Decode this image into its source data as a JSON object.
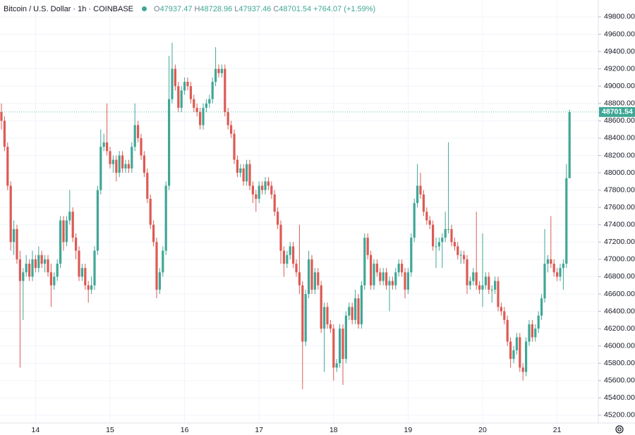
{
  "chart_data": {
    "type": "candlestick",
    "title": "Bitcoin / U.S. Dollar · 1h · COINBASE",
    "legend_letters": [
      "O",
      "H",
      "L",
      "C"
    ],
    "change": "+764.07 (+1.59%)",
    "up_color": "#3fa796",
    "down_color": "#dd5a53",
    "grid": true,
    "ylim": [
      45110,
      49995
    ],
    "yticks": [
      {
        "value": 45200,
        "label": "45200.00"
      },
      {
        "value": 45400,
        "label": "45400.00"
      },
      {
        "value": 45600,
        "label": "45600.00"
      },
      {
        "value": 45800,
        "label": "45800.00"
      },
      {
        "value": 46000,
        "label": "46000.00"
      },
      {
        "value": 46200,
        "label": "46200.00"
      },
      {
        "value": 46400,
        "label": "46400.00"
      },
      {
        "value": 46600,
        "label": "46600.00"
      },
      {
        "value": 46800,
        "label": "46800.00"
      },
      {
        "value": 47000,
        "label": "47000.00"
      },
      {
        "value": 47200,
        "label": "47200.00"
      },
      {
        "value": 47400,
        "label": "47400.00"
      },
      {
        "value": 47600,
        "label": "47600.00"
      },
      {
        "value": 47800,
        "label": "47800.00"
      },
      {
        "value": 48000,
        "label": "48000.00"
      },
      {
        "value": 48200,
        "label": "48200.00"
      },
      {
        "value": 48400,
        "label": "48400.00"
      },
      {
        "value": 48600,
        "label": "48600.00"
      },
      {
        "value": 48800,
        "label": "48800.00"
      },
      {
        "value": 49000,
        "label": "49000.00"
      },
      {
        "value": 49200,
        "label": "49200.00"
      },
      {
        "value": 49400,
        "label": "49400.00"
      },
      {
        "value": 49600,
        "label": "49600.00"
      },
      {
        "value": 49800,
        "label": "49800.00"
      }
    ],
    "x": [
      null,
      null,
      null,
      null,
      null,
      null,
      null,
      null,
      null,
      null,
      null,
      "14",
      null,
      null,
      null,
      null,
      null,
      null,
      null,
      null,
      null,
      null,
      null,
      null,
      null,
      null,
      null,
      null,
      null,
      null,
      null,
      null,
      null,
      null,
      null,
      "15",
      null,
      null,
      null,
      null,
      null,
      null,
      null,
      null,
      null,
      null,
      null,
      null,
      null,
      null,
      null,
      null,
      null,
      null,
      null,
      null,
      null,
      null,
      null,
      "16",
      null,
      null,
      null,
      null,
      null,
      null,
      null,
      null,
      null,
      null,
      null,
      null,
      null,
      null,
      null,
      null,
      null,
      null,
      null,
      null,
      null,
      null,
      null,
      "17",
      null,
      null,
      null,
      null,
      null,
      null,
      null,
      null,
      null,
      null,
      null,
      null,
      null,
      null,
      null,
      null,
      null,
      null,
      null,
      null,
      null,
      null,
      null,
      "18",
      null,
      null,
      null,
      null,
      null,
      null,
      null,
      null,
      null,
      null,
      null,
      null,
      null,
      null,
      null,
      null,
      null,
      null,
      null,
      null,
      null,
      null,
      null,
      "19",
      null,
      null,
      null,
      null,
      null,
      null,
      null,
      null,
      null,
      null,
      null,
      null,
      null,
      null,
      null,
      null,
      null,
      null,
      null,
      null,
      null,
      null,
      null,
      "20",
      null,
      null,
      null,
      null,
      null,
      null,
      null,
      null,
      null,
      null,
      null,
      null,
      null,
      null,
      null,
      null,
      null,
      null,
      null,
      null,
      null,
      null,
      null,
      "21",
      null,
      null,
      null,
      null
    ],
    "candles": [
      [
        48700,
        48800,
        48500,
        48600
      ],
      [
        48600,
        48650,
        48250,
        48300
      ],
      [
        48300,
        48350,
        47800,
        47850
      ],
      [
        47850,
        47900,
        47100,
        47200
      ],
      [
        47200,
        47450,
        47050,
        47350
      ],
      [
        47350,
        47400,
        46950,
        47000
      ],
      [
        47000,
        47100,
        45750,
        46750
      ],
      [
        46750,
        46900,
        46300,
        46850
      ],
      [
        46850,
        47050,
        46800,
        46950
      ],
      [
        46950,
        47000,
        46750,
        46800
      ],
      [
        46800,
        47100,
        46750,
        47000
      ],
      [
        47000,
        47050,
        46850,
        46900
      ],
      [
        46900,
        47150,
        46850,
        47050
      ],
      [
        47050,
        47100,
        46900,
        46950
      ],
      [
        46950,
        47050,
        46850,
        47000
      ],
      [
        47000,
        47050,
        46800,
        46850
      ],
      [
        46850,
        46950,
        46450,
        46700
      ],
      [
        46700,
        46850,
        46650,
        46800
      ],
      [
        46800,
        47000,
        46750,
        46950
      ],
      [
        46950,
        47500,
        46900,
        47450
      ],
      [
        47450,
        47500,
        47100,
        47200
      ],
      [
        47200,
        47500,
        47150,
        47450
      ],
      [
        47450,
        47800,
        47400,
        47550
      ],
      [
        47550,
        47600,
        47200,
        47250
      ],
      [
        47250,
        47300,
        47000,
        47100
      ],
      [
        47100,
        47150,
        46750,
        46800
      ],
      [
        46800,
        46950,
        46750,
        46900
      ],
      [
        46900,
        46950,
        46650,
        46700
      ],
      [
        46700,
        46750,
        46500,
        46650
      ],
      [
        46650,
        46800,
        46600,
        46700
      ],
      [
        46700,
        47150,
        46650,
        47100
      ],
      [
        47100,
        47850,
        47050,
        47800
      ],
      [
        47800,
        48500,
        47750,
        48300
      ],
      [
        48300,
        48450,
        48250,
        48350
      ],
      [
        48350,
        48800,
        48200,
        48250
      ],
      [
        48250,
        48300,
        48050,
        48100
      ],
      [
        48100,
        48200,
        48000,
        48150
      ],
      [
        48150,
        48200,
        47900,
        48000
      ],
      [
        48000,
        48250,
        47950,
        48200
      ],
      [
        48200,
        48250,
        48000,
        48050
      ],
      [
        48050,
        48150,
        48000,
        48100
      ],
      [
        48100,
        48150,
        48000,
        48050
      ],
      [
        48050,
        48350,
        48000,
        48300
      ],
      [
        48300,
        48800,
        48250,
        48550
      ],
      [
        48550,
        48600,
        48350,
        48400
      ],
      [
        48400,
        48450,
        48150,
        48200
      ],
      [
        48200,
        48250,
        47950,
        48000
      ],
      [
        48000,
        48050,
        47650,
        47700
      ],
      [
        47700,
        47750,
        47350,
        47400
      ],
      [
        47400,
        47450,
        47150,
        47200
      ],
      [
        47200,
        47250,
        46550,
        46650
      ],
      [
        46650,
        46900,
        46600,
        46850
      ],
      [
        46850,
        47150,
        46800,
        47100
      ],
      [
        47100,
        47900,
        47050,
        47850
      ],
      [
        47850,
        49350,
        47800,
        48850
      ],
      [
        48850,
        49500,
        48800,
        49200
      ],
      [
        49200,
        49250,
        48950,
        49000
      ],
      [
        49000,
        49050,
        48700,
        48750
      ],
      [
        48750,
        49000,
        48700,
        48950
      ],
      [
        48950,
        49100,
        48900,
        49050
      ],
      [
        49050,
        49100,
        48950,
        49000
      ],
      [
        49000,
        49050,
        48800,
        48850
      ],
      [
        48850,
        48900,
        48700,
        48750
      ],
      [
        48750,
        48800,
        48650,
        48700
      ],
      [
        48700,
        48750,
        48500,
        48550
      ],
      [
        48550,
        48800,
        48500,
        48750
      ],
      [
        48750,
        48850,
        48700,
        48800
      ],
      [
        48800,
        48900,
        48750,
        48850
      ],
      [
        48850,
        49100,
        48800,
        49050
      ],
      [
        49050,
        49450,
        49000,
        49200
      ],
      [
        49200,
        49250,
        49100,
        49150
      ],
      [
        49150,
        49250,
        49100,
        49200
      ],
      [
        49200,
        49250,
        48650,
        48700
      ],
      [
        48700,
        48750,
        48500,
        48550
      ],
      [
        48550,
        48600,
        48400,
        48450
      ],
      [
        48450,
        48500,
        48100,
        48150
      ],
      [
        48150,
        48200,
        47950,
        48000
      ],
      [
        48000,
        48100,
        47950,
        48050
      ],
      [
        48050,
        48100,
        47850,
        47900
      ],
      [
        47900,
        48150,
        47850,
        48100
      ],
      [
        48100,
        48150,
        47800,
        47850
      ],
      [
        47850,
        47900,
        47650,
        47750
      ],
      [
        47750,
        47800,
        47550,
        47700
      ],
      [
        47700,
        47900,
        47650,
        47850
      ],
      [
        47850,
        47900,
        47750,
        47800
      ],
      [
        47800,
        47950,
        47750,
        47900
      ],
      [
        47900,
        47950,
        47800,
        47850
      ],
      [
        47850,
        47900,
        47700,
        47750
      ],
      [
        47750,
        47800,
        47500,
        47550
      ],
      [
        47550,
        47600,
        47350,
        47400
      ],
      [
        47400,
        47450,
        46950,
        47100
      ],
      [
        47100,
        47150,
        46800,
        46950
      ],
      [
        46950,
        47100,
        46900,
        47050
      ],
      [
        47050,
        47200,
        47000,
        47150
      ],
      [
        47150,
        47200,
        46900,
        46950
      ],
      [
        46950,
        47000,
        46800,
        46850
      ],
      [
        46850,
        47400,
        46600,
        46700
      ],
      [
        46700,
        46750,
        45500,
        46050
      ],
      [
        46050,
        46650,
        46000,
        46600
      ],
      [
        46600,
        47100,
        46550,
        47000
      ],
      [
        47000,
        47050,
        46600,
        46650
      ],
      [
        46650,
        46900,
        46600,
        46850
      ],
      [
        46850,
        46900,
        46650,
        46700
      ],
      [
        46700,
        46750,
        46150,
        46200
      ],
      [
        46200,
        46500,
        45700,
        46450
      ],
      [
        46450,
        46500,
        46200,
        46250
      ],
      [
        46250,
        46300,
        46150,
        46200
      ],
      [
        46200,
        46250,
        45600,
        45750
      ],
      [
        45750,
        45850,
        45700,
        45800
      ],
      [
        45800,
        46250,
        45750,
        46200
      ],
      [
        46200,
        46250,
        45550,
        45850
      ],
      [
        45850,
        46400,
        45800,
        46350
      ],
      [
        46350,
        46500,
        46300,
        46450
      ],
      [
        46450,
        46500,
        46250,
        46300
      ],
      [
        46300,
        46650,
        46250,
        46550
      ],
      [
        46550,
        46600,
        46200,
        46250
      ],
      [
        46250,
        46750,
        46200,
        46700
      ],
      [
        46700,
        47300,
        46650,
        47250
      ],
      [
        47250,
        47300,
        47000,
        47050
      ],
      [
        47050,
        47100,
        46650,
        46700
      ],
      [
        46700,
        47000,
        46650,
        46950
      ],
      [
        46950,
        47000,
        46800,
        46850
      ],
      [
        46850,
        46900,
        46700,
        46750
      ],
      [
        46750,
        46900,
        46700,
        46850
      ],
      [
        46850,
        46900,
        46650,
        46700
      ],
      [
        46700,
        46800,
        46400,
        46750
      ],
      [
        46750,
        46800,
        46650,
        46700
      ],
      [
        46700,
        46900,
        46650,
        46850
      ],
      [
        46850,
        47000,
        46800,
        46950
      ],
      [
        46950,
        47000,
        46800,
        46850
      ],
      [
        46850,
        46900,
        46550,
        46650
      ],
      [
        46650,
        46900,
        46600,
        46850
      ],
      [
        46850,
        47300,
        46800,
        47250
      ],
      [
        47250,
        47700,
        47200,
        47650
      ],
      [
        47650,
        48100,
        47600,
        47850
      ],
      [
        47850,
        48000,
        47700,
        47750
      ],
      [
        47750,
        47800,
        47500,
        47550
      ],
      [
        47550,
        47600,
        47400,
        47450
      ],
      [
        47450,
        47500,
        47350,
        47400
      ],
      [
        47400,
        47450,
        47100,
        47150
      ],
      [
        47150,
        47250,
        46900,
        47150
      ],
      [
        47150,
        47250,
        47100,
        47200
      ],
      [
        47200,
        47300,
        46900,
        47250
      ],
      [
        47250,
        47550,
        47200,
        47350
      ],
      [
        47350,
        48350,
        47300,
        47350
      ],
      [
        47350,
        47400,
        47150,
        47200
      ],
      [
        47200,
        47250,
        47100,
        47150
      ],
      [
        47150,
        47200,
        47000,
        47050
      ],
      [
        47050,
        47100,
        46950,
        47050
      ],
      [
        47050,
        47100,
        46950,
        47000
      ],
      [
        47000,
        47050,
        46600,
        46700
      ],
      [
        46700,
        46800,
        46650,
        46750
      ],
      [
        46750,
        46900,
        46700,
        46850
      ],
      [
        46850,
        47550,
        46650,
        46700
      ],
      [
        46700,
        46750,
        46600,
        46650
      ],
      [
        46650,
        47300,
        46450,
        46700
      ],
      [
        46700,
        46850,
        46650,
        46800
      ],
      [
        46800,
        46850,
        46600,
        46650
      ],
      [
        46650,
        46700,
        46500,
        46650
      ],
      [
        46650,
        46800,
        46600,
        46750
      ],
      [
        46750,
        46800,
        46400,
        46450
      ],
      [
        46450,
        46500,
        46350,
        46400
      ],
      [
        46400,
        46450,
        46250,
        46300
      ],
      [
        46300,
        46350,
        46000,
        46050
      ],
      [
        46050,
        46100,
        45750,
        45850
      ],
      [
        45850,
        46000,
        45800,
        45950
      ],
      [
        45950,
        46150,
        45900,
        46100
      ],
      [
        46100,
        46150,
        45700,
        45750
      ],
      [
        45750,
        45800,
        45600,
        45700
      ],
      [
        45700,
        46100,
        45650,
        46050
      ],
      [
        46050,
        46300,
        46000,
        46250
      ],
      [
        46250,
        46300,
        46050,
        46100
      ],
      [
        46100,
        46250,
        46050,
        46200
      ],
      [
        46200,
        46400,
        46150,
        46350
      ],
      [
        46350,
        46600,
        46300,
        46550
      ],
      [
        46550,
        47350,
        46500,
        46950
      ],
      [
        46950,
        47050,
        46850,
        47000
      ],
      [
        47000,
        47500,
        46900,
        46950
      ],
      [
        46950,
        47000,
        46800,
        46850
      ],
      [
        46850,
        46900,
        46750,
        46800
      ],
      [
        46800,
        46950,
        46750,
        46900
      ],
      [
        46900,
        47000,
        46650,
        46950
      ],
      [
        46950,
        48100,
        46900,
        47937.47
      ],
      [
        47937.47,
        48728.96,
        47937.46,
        48701.54
      ]
    ]
  }
}
